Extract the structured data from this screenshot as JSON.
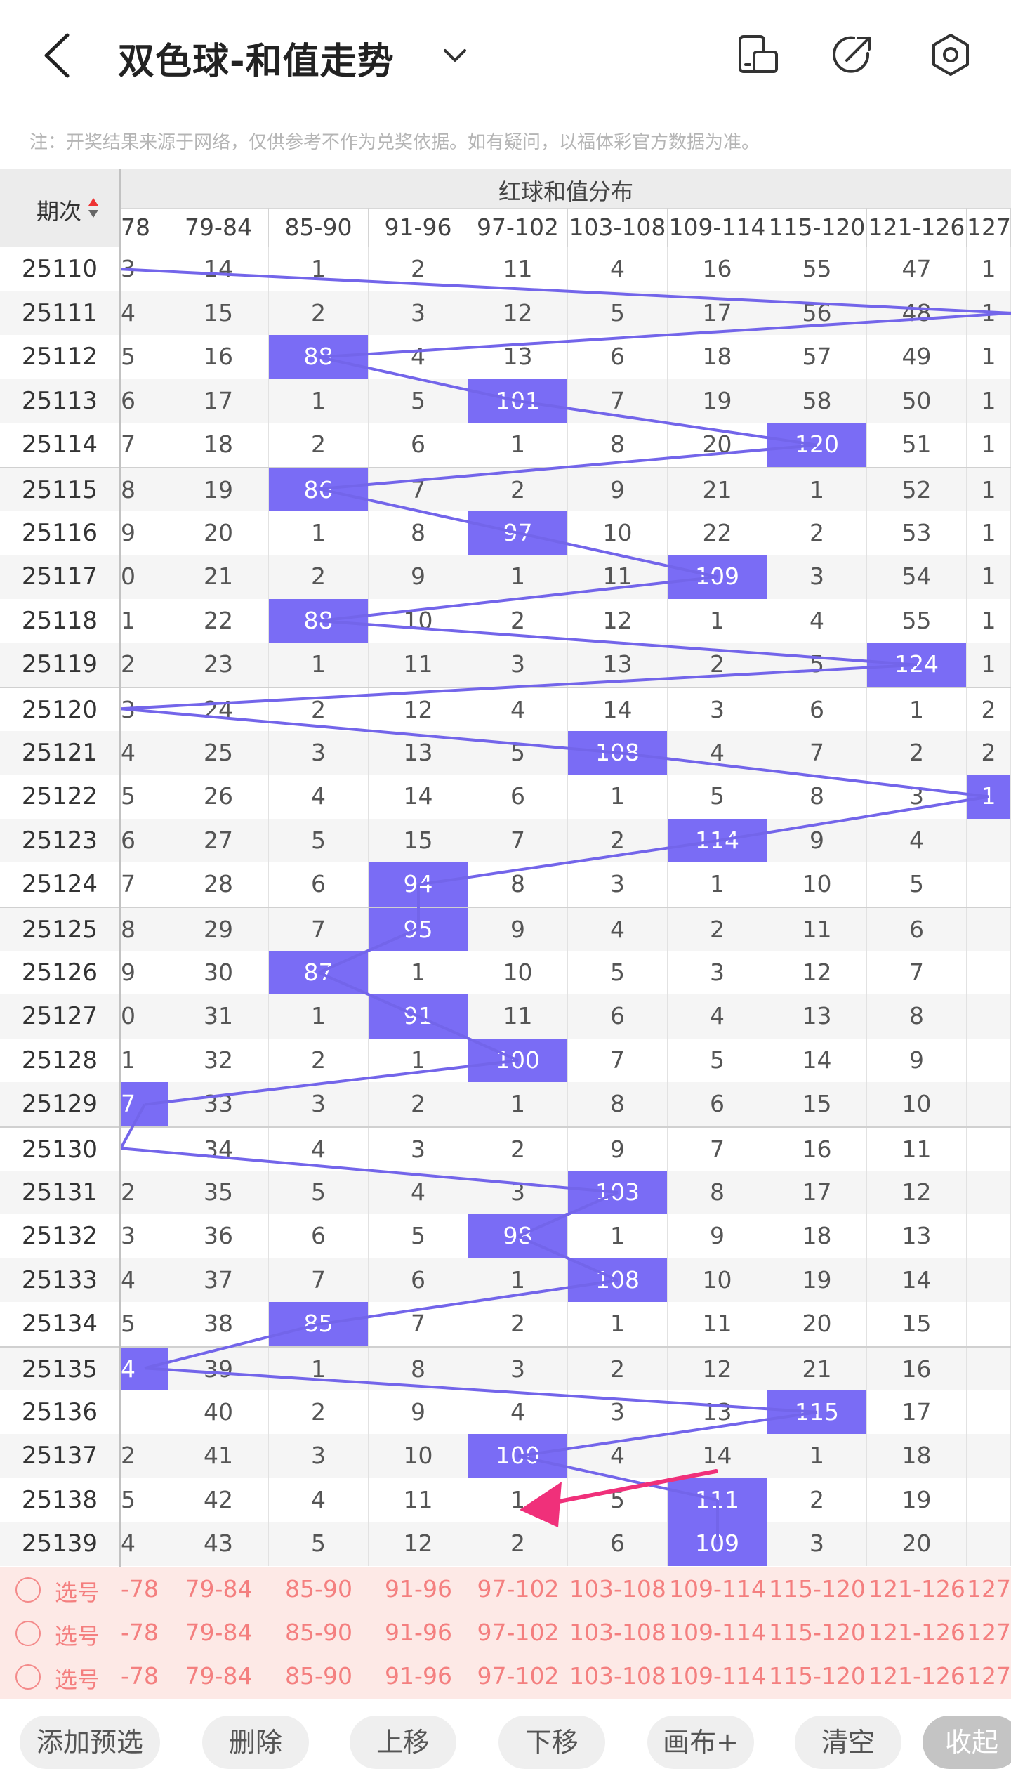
{
  "header": {
    "title": "双色球-和值走势"
  },
  "notice": "注：开奖结果来源于网络，仅供参考不作为兑奖依据。如有疑问，以福体彩官方数据为准。",
  "table": {
    "period_label": "期次",
    "red_sum_label": "红球和值分布",
    "ranges": [
      "78",
      "79-84",
      "85-90",
      "91-96",
      "97-102",
      "103-108",
      "109-114",
      "115-120",
      "121-126",
      "127"
    ],
    "rows": [
      {
        "period": "25110",
        "cells": [
          "3",
          "14",
          "1",
          "2",
          "11",
          "4",
          "16",
          "55",
          "47",
          "1"
        ],
        "hit": null
      },
      {
        "period": "25111",
        "cells": [
          "4",
          "15",
          "2",
          "3",
          "12",
          "5",
          "17",
          "56",
          "48",
          "1"
        ],
        "hit": null
      },
      {
        "period": "25112",
        "cells": [
          "5",
          "16",
          "88",
          "4",
          "13",
          "6",
          "18",
          "57",
          "49",
          "1"
        ],
        "hit": 2
      },
      {
        "period": "25113",
        "cells": [
          "6",
          "17",
          "1",
          "5",
          "101",
          "7",
          "19",
          "58",
          "50",
          "1"
        ],
        "hit": 4
      },
      {
        "period": "25114",
        "cells": [
          "7",
          "18",
          "2",
          "6",
          "1",
          "8",
          "20",
          "120",
          "51",
          "1"
        ],
        "hit": 7
      },
      {
        "period": "25115",
        "cells": [
          "8",
          "19",
          "86",
          "7",
          "2",
          "9",
          "21",
          "1",
          "52",
          "1"
        ],
        "hit": 2
      },
      {
        "period": "25116",
        "cells": [
          "9",
          "20",
          "1",
          "8",
          "97",
          "10",
          "22",
          "2",
          "53",
          "1"
        ],
        "hit": 4
      },
      {
        "period": "25117",
        "cells": [
          "0",
          "21",
          "2",
          "9",
          "1",
          "11",
          "109",
          "3",
          "54",
          "1"
        ],
        "hit": 6
      },
      {
        "period": "25118",
        "cells": [
          "1",
          "22",
          "88",
          "10",
          "2",
          "12",
          "1",
          "4",
          "55",
          "1"
        ],
        "hit": 2
      },
      {
        "period": "25119",
        "cells": [
          "2",
          "23",
          "1",
          "11",
          "3",
          "13",
          "2",
          "5",
          "124",
          "1"
        ],
        "hit": 8
      },
      {
        "period": "25120",
        "cells": [
          "3",
          "24",
          "2",
          "12",
          "4",
          "14",
          "3",
          "6",
          "1",
          "2"
        ],
        "hit": null
      },
      {
        "period": "25121",
        "cells": [
          "4",
          "25",
          "3",
          "13",
          "5",
          "108",
          "4",
          "7",
          "2",
          "2"
        ],
        "hit": 5
      },
      {
        "period": "25122",
        "cells": [
          "5",
          "26",
          "4",
          "14",
          "6",
          "1",
          "5",
          "8",
          "3",
          "1"
        ],
        "hit": 9
      },
      {
        "period": "25123",
        "cells": [
          "6",
          "27",
          "5",
          "15",
          "7",
          "2",
          "114",
          "9",
          "4",
          ""
        ],
        "hit": 6
      },
      {
        "period": "25124",
        "cells": [
          "7",
          "28",
          "6",
          "94",
          "8",
          "3",
          "1",
          "10",
          "5",
          ""
        ],
        "hit": 3
      },
      {
        "period": "25125",
        "cells": [
          "8",
          "29",
          "7",
          "95",
          "9",
          "4",
          "2",
          "11",
          "6",
          ""
        ],
        "hit": 3
      },
      {
        "period": "25126",
        "cells": [
          "9",
          "30",
          "87",
          "1",
          "10",
          "5",
          "3",
          "12",
          "7",
          ""
        ],
        "hit": 2
      },
      {
        "period": "25127",
        "cells": [
          "0",
          "31",
          "1",
          "91",
          "11",
          "6",
          "4",
          "13",
          "8",
          ""
        ],
        "hit": 3
      },
      {
        "period": "25128",
        "cells": [
          "1",
          "32",
          "2",
          "1",
          "100",
          "7",
          "5",
          "14",
          "9",
          ""
        ],
        "hit": 4
      },
      {
        "period": "25129",
        "cells": [
          "7",
          "33",
          "3",
          "2",
          "1",
          "8",
          "6",
          "15",
          "10",
          ""
        ],
        "hit": 0
      },
      {
        "period": "25130",
        "cells": [
          "",
          "34",
          "4",
          "3",
          "2",
          "9",
          "7",
          "16",
          "11",
          ""
        ],
        "hit": null
      },
      {
        "period": "25131",
        "cells": [
          "2",
          "35",
          "5",
          "4",
          "3",
          "103",
          "8",
          "17",
          "12",
          ""
        ],
        "hit": 5
      },
      {
        "period": "25132",
        "cells": [
          "3",
          "36",
          "6",
          "5",
          "98",
          "1",
          "9",
          "18",
          "13",
          ""
        ],
        "hit": 4
      },
      {
        "period": "25133",
        "cells": [
          "4",
          "37",
          "7",
          "6",
          "1",
          "108",
          "10",
          "19",
          "14",
          ""
        ],
        "hit": 5
      },
      {
        "period": "25134",
        "cells": [
          "5",
          "38",
          "85",
          "7",
          "2",
          "1",
          "11",
          "20",
          "15",
          ""
        ],
        "hit": 2
      },
      {
        "period": "25135",
        "cells": [
          "4",
          "39",
          "1",
          "8",
          "3",
          "2",
          "12",
          "21",
          "16",
          ""
        ],
        "hit": 0
      },
      {
        "period": "25136",
        "cells": [
          "",
          "40",
          "2",
          "9",
          "4",
          "3",
          "13",
          "115",
          "17",
          ""
        ],
        "hit": 7
      },
      {
        "period": "25137",
        "cells": [
          "2",
          "41",
          "3",
          "10",
          "100",
          "4",
          "14",
          "1",
          "18",
          ""
        ],
        "hit": 4
      },
      {
        "period": "25138",
        "cells": [
          "5",
          "42",
          "4",
          "11",
          "1",
          "5",
          "111",
          "2",
          "19",
          ""
        ],
        "hit": 6
      },
      {
        "period": "25139",
        "cells": [
          "4",
          "43",
          "5",
          "12",
          "2",
          "6",
          "109",
          "3",
          "20",
          ""
        ],
        "hit": 6
      }
    ]
  },
  "pick": {
    "label": "选号",
    "ranges": [
      "-78",
      "79-84",
      "85-90",
      "91-96",
      "97-102",
      "103-108",
      "109-114",
      "115-120",
      "121-126",
      "127"
    ]
  },
  "toolbar": {
    "add": "添加预选",
    "delete": "删除",
    "up": "上移",
    "down": "下移",
    "canvas": "画布+",
    "clear": "清空",
    "collapse": "收起"
  },
  "colors": {
    "hit": "#7a6cf5",
    "line": "#7365ea",
    "pick_bg": "#fde9e6",
    "pick_text": "#f47f7f"
  }
}
